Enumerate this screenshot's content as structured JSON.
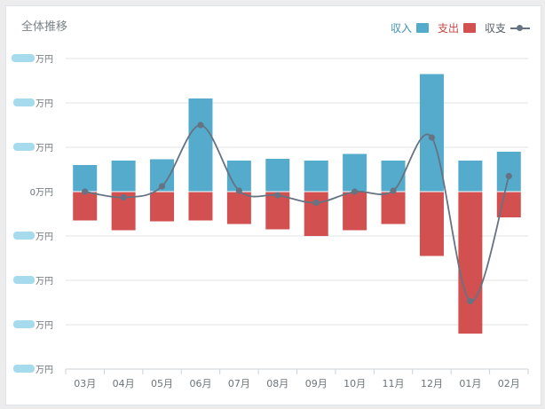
{
  "chart_data": {
    "type": "bar",
    "title": "全体推移",
    "categories": [
      "03月",
      "04月",
      "05月",
      "06月",
      "07月",
      "08月",
      "09月",
      "10月",
      "11月",
      "12月",
      "01月",
      "02月"
    ],
    "series": [
      {
        "name": "収入",
        "kind": "bar",
        "color": "#55abcc",
        "values": [
          6,
          7,
          7.3,
          21,
          7,
          7.4,
          7,
          8.5,
          7,
          26.5,
          7,
          9
        ]
      },
      {
        "name": "支出",
        "kind": "bar",
        "color": "#d35050",
        "values": [
          -6.5,
          -8.7,
          -6.7,
          -6.5,
          -7.3,
          -8.5,
          -10,
          -8.7,
          -7.3,
          -14.5,
          -32,
          -5.8
        ]
      },
      {
        "name": "収支",
        "kind": "line",
        "color": "#667382",
        "values": [
          0,
          -1.3,
          1.2,
          15,
          0.2,
          -0.8,
          -2.5,
          0,
          0.2,
          12.2,
          -24.7,
          3.5
        ]
      }
    ],
    "yticks": [
      30,
      20,
      10,
      0,
      -10,
      -20,
      -30,
      -40
    ],
    "ytick_labels": [
      "万円",
      "万円",
      "万円",
      "0万円",
      "万円",
      "万円",
      "万円",
      "万円"
    ],
    "ylim": [
      -40,
      30
    ],
    "grid": true,
    "legend_position": "top-right"
  }
}
